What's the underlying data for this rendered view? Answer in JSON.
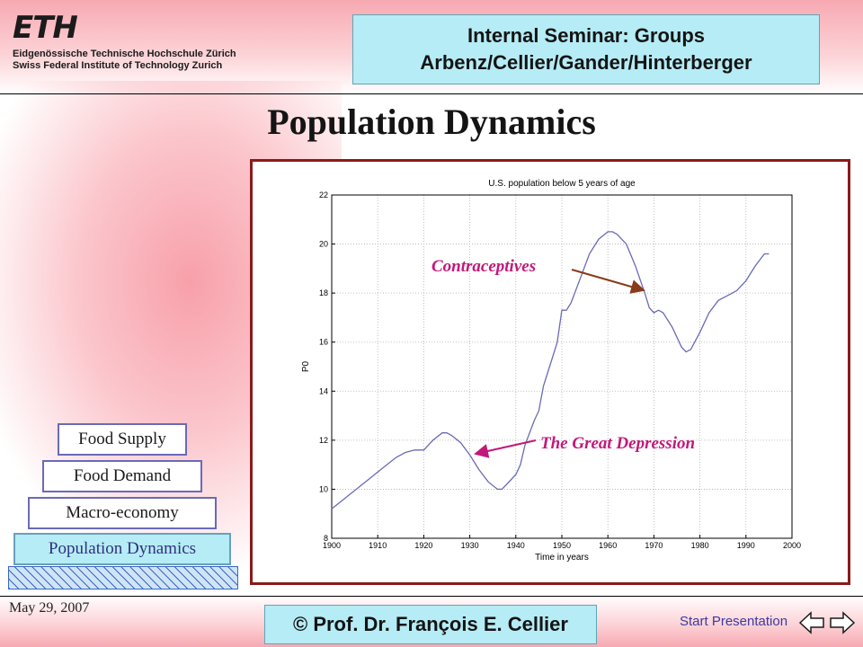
{
  "header": {
    "logo_mark": "ETH",
    "logo_line1": "Eidgenössische Technische Hochschule Zürich",
    "logo_line2": "Swiss Federal Institute of Technology Zurich",
    "seminar_line1": "Internal Seminar: Groups",
    "seminar_line2": "Arbenz/Cellier/Gander/Hinterberger"
  },
  "title": "Population Dynamics",
  "sidebar_stack": [
    {
      "label": "Food Supply",
      "active": false
    },
    {
      "label": "Food Demand",
      "active": false
    },
    {
      "label": "Macro-economy",
      "active": false
    },
    {
      "label": "Population Dynamics",
      "active": true
    }
  ],
  "annotations": {
    "contraceptives": "Contraceptives",
    "depression": "The Great Depression"
  },
  "footer": {
    "date": "May 29, 2007",
    "copyright": "© Prof. Dr. François E. Cellier",
    "start": "Start Presentation"
  },
  "colors": {
    "accent_box": "#b5ecf5",
    "frame": "#8b1a1a",
    "annotation": "#c2187a",
    "contraceptives_arrow": "#8b3a1a",
    "depression_arrow": "#c2187a",
    "series": "#6a6ab8"
  },
  "icons": [
    "left-arrow-icon",
    "right-arrow-icon"
  ],
  "chart_data": {
    "type": "line",
    "title": "U.S. population below 5 years of age",
    "xlabel": "Time in years",
    "ylabel": "P0",
    "xlim": [
      1900,
      2000
    ],
    "ylim": [
      8,
      22
    ],
    "xticks": [
      1900,
      1910,
      1920,
      1930,
      1940,
      1950,
      1960,
      1970,
      1980,
      1990,
      2000
    ],
    "yticks": [
      8,
      10,
      12,
      14,
      16,
      18,
      20,
      22
    ],
    "grid": true,
    "series": [
      {
        "x": [
          1900,
          1902,
          1904,
          1906,
          1908,
          1910,
          1912,
          1914,
          1916,
          1918,
          1919,
          1920,
          1922,
          1924,
          1925,
          1926,
          1928,
          1930,
          1932,
          1934,
          1936,
          1937,
          1938,
          1940,
          1941,
          1942,
          1944,
          1945,
          1946,
          1947,
          1948,
          1949,
          1950,
          1951,
          1952,
          1954,
          1956,
          1958,
          1960,
          1961,
          1962,
          1964,
          1966,
          1968,
          1969,
          1970,
          1971,
          1972,
          1974,
          1976,
          1977,
          1978,
          1980,
          1982,
          1984,
          1986,
          1988,
          1990,
          1992,
          1994,
          1995
        ],
        "y": [
          9.2,
          9.5,
          9.8,
          10.1,
          10.4,
          10.7,
          11.0,
          11.3,
          11.5,
          11.6,
          11.6,
          11.6,
          12.0,
          12.3,
          12.3,
          12.2,
          11.9,
          11.4,
          10.8,
          10.3,
          10.0,
          10.0,
          10.2,
          10.6,
          11.0,
          11.8,
          12.8,
          13.2,
          14.2,
          14.8,
          15.4,
          16.0,
          17.3,
          17.3,
          17.6,
          18.6,
          19.6,
          20.2,
          20.5,
          20.5,
          20.4,
          20.0,
          19.1,
          18.0,
          17.4,
          17.2,
          17.3,
          17.2,
          16.6,
          15.8,
          15.6,
          15.7,
          16.4,
          17.2,
          17.7,
          17.9,
          18.1,
          18.5,
          19.1,
          19.6,
          19.6
        ]
      }
    ]
  }
}
